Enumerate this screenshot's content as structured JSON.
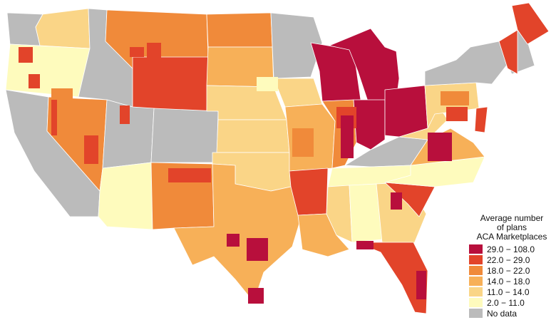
{
  "legend": {
    "title_lines": [
      "Average number",
      "of plans",
      "ACA Marketplaces"
    ],
    "items": [
      {
        "label": "29.0 − 108.0",
        "color": "#b80f3c"
      },
      {
        "label": "22.0 − 29.0",
        "color": "#e2442a"
      },
      {
        "label": "18.0 − 22.0",
        "color": "#f08a3a"
      },
      {
        "label": "14.0 − 18.0",
        "color": "#f7b058"
      },
      {
        "label": "11.0 − 14.0",
        "color": "#fad587"
      },
      {
        "label": "2.0 − 11.0",
        "color": "#fefbbd"
      },
      {
        "label": "No data",
        "color": "#bbbbbb"
      }
    ]
  },
  "regions": [
    {
      "name": "washington-coast",
      "class": "No data"
    },
    {
      "name": "washington-east",
      "class": "11.0 − 14.0"
    },
    {
      "name": "oregon",
      "class": "2.0 − 11.0"
    },
    {
      "name": "california",
      "class": "No data"
    },
    {
      "name": "nevada",
      "class": "18.0 − 22.0"
    },
    {
      "name": "idaho",
      "class": "No data"
    },
    {
      "name": "montana",
      "class": "18.0 − 22.0"
    },
    {
      "name": "wyoming",
      "class": "22.0 − 29.0"
    },
    {
      "name": "utah",
      "class": "No data"
    },
    {
      "name": "colorado",
      "class": "No data"
    },
    {
      "name": "arizona",
      "class": "2.0 − 11.0"
    },
    {
      "name": "new-mexico",
      "class": "18.0 − 22.0"
    },
    {
      "name": "north-dakota",
      "class": "18.0 − 22.0"
    },
    {
      "name": "south-dakota",
      "class": "14.0 − 18.0"
    },
    {
      "name": "nebraska",
      "class": "11.0 − 14.0"
    },
    {
      "name": "kansas",
      "class": "11.0 − 14.0"
    },
    {
      "name": "oklahoma",
      "class": "11.0 − 14.0"
    },
    {
      "name": "texas",
      "class": "14.0 − 18.0"
    },
    {
      "name": "minnesota",
      "class": "No data"
    },
    {
      "name": "iowa",
      "class": "11.0 − 14.0"
    },
    {
      "name": "missouri",
      "class": "14.0 − 18.0"
    },
    {
      "name": "arkansas",
      "class": "22.0 − 29.0"
    },
    {
      "name": "louisiana",
      "class": "14.0 − 18.0"
    },
    {
      "name": "wisconsin",
      "class": "29.0 − 108.0"
    },
    {
      "name": "illinois",
      "class": "18.0 − 22.0"
    },
    {
      "name": "michigan",
      "class": "29.0 − 108.0"
    },
    {
      "name": "indiana",
      "class": "29.0 − 108.0"
    },
    {
      "name": "ohio",
      "class": "29.0 − 108.0"
    },
    {
      "name": "kentucky",
      "class": "No data"
    },
    {
      "name": "tennessee",
      "class": "2.0 − 11.0"
    },
    {
      "name": "mississippi",
      "class": "11.0 − 14.0"
    },
    {
      "name": "alabama",
      "class": "2.0 − 11.0"
    },
    {
      "name": "georgia",
      "class": "11.0 − 14.0"
    },
    {
      "name": "florida",
      "class": "22.0 − 29.0"
    },
    {
      "name": "south-carolina",
      "class": "22.0 − 29.0"
    },
    {
      "name": "north-carolina",
      "class": "2.0 − 11.0"
    },
    {
      "name": "virginia",
      "class": "14.0 − 18.0"
    },
    {
      "name": "west-virginia",
      "class": "11.0 − 14.0"
    },
    {
      "name": "pennsylvania",
      "class": "11.0 − 14.0"
    },
    {
      "name": "new-york",
      "class": "No data"
    },
    {
      "name": "new-england",
      "class": "No data"
    },
    {
      "name": "maine",
      "class": "22.0 − 29.0"
    },
    {
      "name": "new-hampshire",
      "class": "22.0 − 29.0"
    },
    {
      "name": "new-jersey",
      "class": "22.0 − 29.0"
    }
  ]
}
